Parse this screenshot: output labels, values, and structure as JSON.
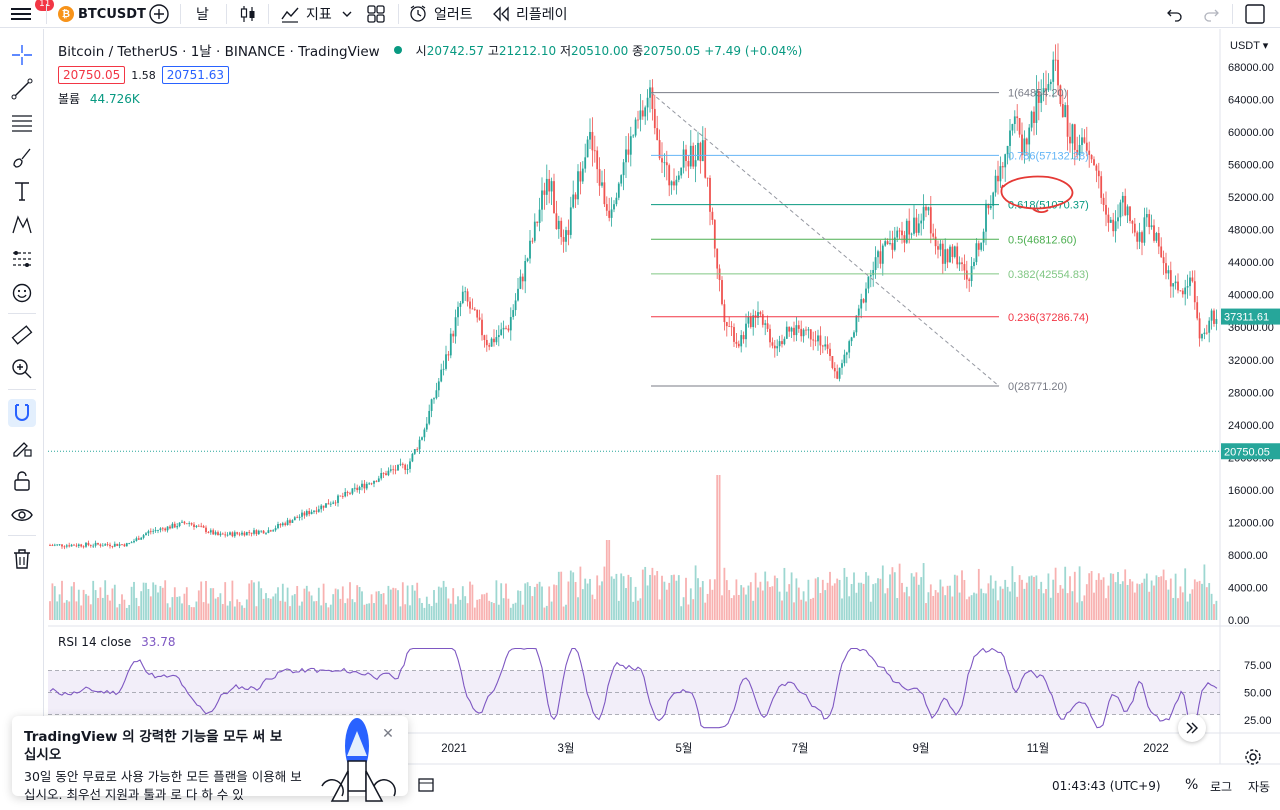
{
  "toolbar": {
    "menu_badge": "11",
    "symbol": "BTCUSDT",
    "interval": "날",
    "indicators_label": "지표",
    "alert_label": "얼러트",
    "replay_label": "리플레이"
  },
  "legend": {
    "title": "Bitcoin / TetherUS · 1날 · BINANCE · TradingView",
    "open_label": "시",
    "open_value": "20742.57",
    "high_label": "고",
    "high_value": "21212.10",
    "low_label": "저",
    "low_value": "20510.00",
    "close_label": "종",
    "close_value": "20750.05",
    "change": "+7.49 (+0.04%)",
    "bid": "20750.05",
    "spread": "1.58",
    "ask": "20751.63",
    "volume_label": "볼륨",
    "volume_value": "44.726K"
  },
  "price_axis": {
    "currency": "USDT",
    "labels": [
      "68000.00",
      "64000.00",
      "60000.00",
      "56000.00",
      "52000.00",
      "48000.00",
      "44000.00",
      "40000.00",
      "36000.00",
      "32000.00",
      "28000.00",
      "24000.00",
      "20000.00",
      "16000.00",
      "12000.00",
      "8000.00",
      "4000.00",
      "0.00"
    ],
    "last_price_tag": "37311.61",
    "current_price_tag": "20750.05"
  },
  "time_axis": {
    "labels": [
      "2021",
      "3월",
      "5월",
      "7월",
      "9월",
      "11월",
      "2022"
    ],
    "clock": "01:43:43 (UTC+9)",
    "pct_label": "%",
    "log_label": "로그",
    "auto_label": "자동"
  },
  "fib": {
    "levels": [
      {
        "label": "1(64854.20)",
        "color": "#787b86"
      },
      {
        "label": "0.786(57132.28)",
        "color": "#64b5f6"
      },
      {
        "label": "0.618(51070.37)",
        "color": "#089981"
      },
      {
        "label": "0.5(46812.60)",
        "color": "#4caf50"
      },
      {
        "label": "0.382(42554.83)",
        "color": "#81c784"
      },
      {
        "label": "0.236(37286.74)",
        "color": "#f23645"
      },
      {
        "label": "0(28771.20)",
        "color": "#787b86"
      }
    ]
  },
  "rsi": {
    "title": "RSI 14 close",
    "value": "33.78",
    "labels": [
      "75.00",
      "50.00",
      "25.00"
    ]
  },
  "promo": {
    "title": "TradingView 의 강력한 기능을 모두 써 보십시오",
    "body": "30일 동안 무료로 사용 가능한 모든 플랜을 이용해 보십시오. 최우선 지원과 툴과 로 다 하 수 있"
  },
  "colors": {
    "up": "#26a69a",
    "down": "#ef5350",
    "rsi_line": "#7e57c2",
    "accent": "#2962ff"
  },
  "icons": [
    "menu-icon",
    "bitcoin-icon",
    "add-symbol-icon",
    "candles-icon",
    "indicators-icon",
    "layout-icon",
    "alert-icon",
    "replay-icon",
    "undo-icon",
    "redo-icon",
    "crosshair-icon",
    "trendline-icon",
    "fib-icon",
    "brush-icon",
    "text-icon",
    "pattern-icon",
    "prediction-icon",
    "emoji-icon",
    "ruler-icon",
    "zoom-icon",
    "magnet-icon",
    "lock-drawing-icon",
    "lock-icon",
    "eye-icon",
    "trash-icon",
    "settings-icon",
    "rocket-icon"
  ]
}
